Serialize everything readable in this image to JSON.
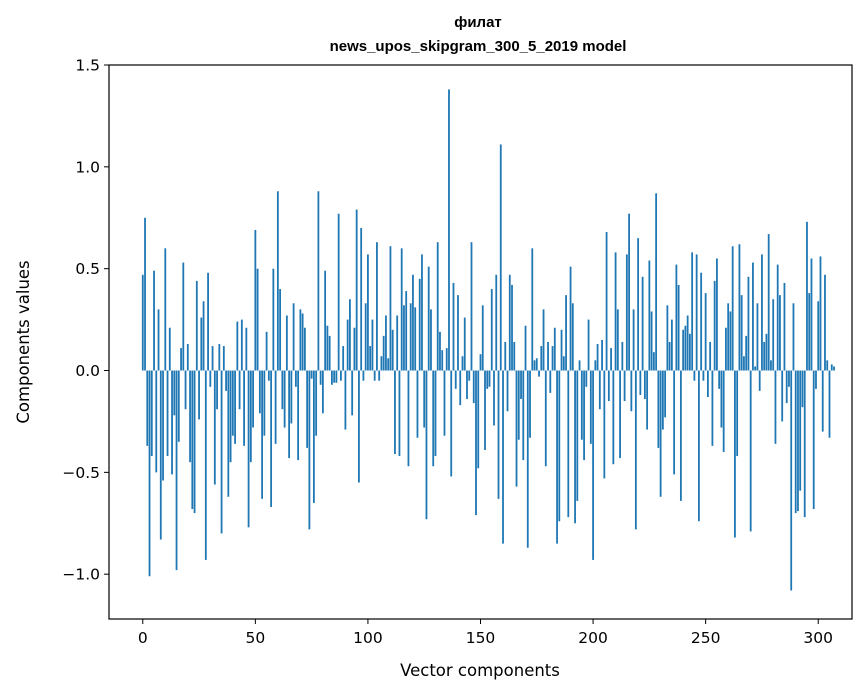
{
  "chart_data": {
    "type": "bar",
    "title": "филат",
    "subtitle": "news_upos_skipgram_300_5_2019 model",
    "xlabel": "Vector components",
    "ylabel": "Components values",
    "xlim": [
      -15,
      315
    ],
    "ylim": [
      -1.22,
      1.5
    ],
    "x_ticks": [
      0,
      50,
      100,
      150,
      200,
      250,
      300
    ],
    "y_ticks": [
      -1.0,
      -0.5,
      0.0,
      0.5,
      1.0,
      1.5
    ],
    "x_tick_labels": [
      "0",
      "50",
      "100",
      "150",
      "200",
      "250",
      "300"
    ],
    "y_tick_labels": [
      "−1.0",
      "−0.5",
      "0.0",
      "0.5",
      "1.0",
      "1.5"
    ],
    "bar_color": "#1f77b4",
    "grid": false,
    "values": [
      0.47,
      0.75,
      -0.37,
      -1.01,
      -0.42,
      0.49,
      -0.5,
      0.3,
      -0.83,
      -0.54,
      0.6,
      -0.42,
      0.21,
      -0.51,
      -0.22,
      -0.98,
      -0.35,
      0.11,
      0.53,
      -0.19,
      0.13,
      -0.45,
      -0.68,
      -0.7,
      0.44,
      -0.24,
      0.26,
      0.34,
      -0.93,
      0.48,
      -0.08,
      0.12,
      -0.56,
      -0.19,
      0.13,
      -0.8,
      0.12,
      -0.1,
      -0.62,
      -0.45,
      -0.32,
      -0.36,
      0.24,
      -0.19,
      0.25,
      -0.37,
      0.21,
      -0.77,
      -0.45,
      -0.28,
      0.69,
      0.5,
      -0.21,
      -0.63,
      -0.32,
      0.19,
      -0.05,
      -0.67,
      0.5,
      -0.36,
      0.88,
      0.4,
      -0.19,
      -0.28,
      0.27,
      -0.43,
      -0.26,
      0.33,
      -0.08,
      -0.44,
      0.3,
      0.28,
      0.21,
      -0.38,
      -0.78,
      -0.04,
      -0.65,
      -0.32,
      0.88,
      -0.07,
      -0.21,
      0.49,
      0.22,
      0.17,
      -0.07,
      -0.06,
      -0.06,
      0.77,
      -0.05,
      0.12,
      -0.29,
      0.25,
      0.35,
      -0.22,
      0.21,
      0.79,
      -0.55,
      0.7,
      -0.05,
      0.33,
      0.57,
      0.12,
      0.25,
      -0.05,
      0.63,
      -0.05,
      0.07,
      0.17,
      0.27,
      0.06,
      0.61,
      0.2,
      -0.41,
      0.27,
      -0.42,
      0.6,
      0.32,
      0.39,
      -0.47,
      0.33,
      0.47,
      0.31,
      -0.33,
      0.45,
      0.57,
      -0.28,
      -0.73,
      0.51,
      0.3,
      -0.47,
      -0.42,
      0.63,
      0.19,
      0.1,
      -0.32,
      0.11,
      1.38,
      -0.52,
      0.43,
      -0.09,
      0.37,
      -0.17,
      0.07,
      0.26,
      -0.14,
      -0.05,
      0.63,
      -0.16,
      -0.71,
      -0.48,
      0.08,
      0.32,
      -0.39,
      -0.09,
      -0.08,
      0.4,
      -0.27,
      0.47,
      -0.63,
      1.11,
      -0.85,
      0.14,
      -0.2,
      0.47,
      0.42,
      0.14,
      -0.57,
      -0.34,
      -0.14,
      -0.44,
      0.22,
      -0.87,
      -0.33,
      0.6,
      0.05,
      0.06,
      -0.03,
      0.12,
      0.3,
      -0.47,
      0.14,
      -0.11,
      0.12,
      0.21,
      -0.85,
      -0.74,
      0.2,
      0.07,
      0.37,
      -0.72,
      0.51,
      0.33,
      -0.75,
      -0.64,
      0.05,
      -0.34,
      -0.44,
      -0.08,
      0.25,
      -0.36,
      -0.93,
      0.05,
      0.13,
      -0.19,
      0.15,
      -0.53,
      0.68,
      -0.15,
      0.11,
      -0.46,
      0.58,
      0.3,
      -0.43,
      0.14,
      -0.15,
      0.57,
      0.77,
      -0.2,
      0.3,
      -0.78,
      0.65,
      -0.12,
      0.46,
      -0.14,
      -0.29,
      0.54,
      0.29,
      0.09,
      0.87,
      -0.38,
      -0.62,
      -0.29,
      -0.23,
      0.32,
      0.14,
      0.25,
      -0.51,
      0.52,
      0.42,
      -0.64,
      0.2,
      0.22,
      0.27,
      0.18,
      0.58,
      -0.05,
      0.57,
      -0.74,
      0.48,
      -0.05,
      0.38,
      -0.13,
      0.14,
      -0.37,
      0.44,
      0.55,
      -0.09,
      -0.28,
      -0.4,
      0.21,
      0.33,
      0.29,
      0.61,
      -0.82,
      -0.42,
      0.62,
      0.37,
      0.07,
      0.17,
      0.46,
      -0.79,
      0.53,
      0.02,
      0.33,
      -0.1,
      0.57,
      0.14,
      0.18,
      0.67,
      0.05,
      0.35,
      -0.36,
      0.52,
      0.37,
      -0.25,
      0.43,
      -0.16,
      -0.08,
      -1.08,
      0.33,
      -0.7,
      -0.69,
      -0.59,
      -0.18,
      -0.72,
      0.73,
      0.38,
      0.55,
      -0.68,
      -0.09,
      0.34,
      0.56,
      -0.3,
      0.47,
      0.05,
      -0.33,
      0.03,
      0.02
    ]
  }
}
